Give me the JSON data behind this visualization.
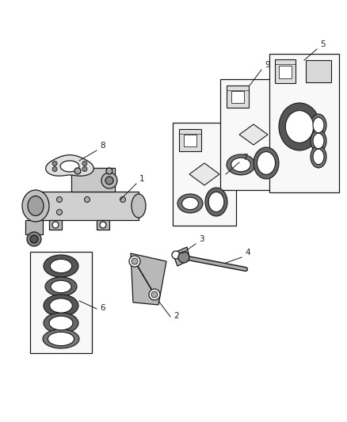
{
  "background_color": "#ffffff",
  "figsize": [
    4.38,
    5.33
  ],
  "dpi": 100,
  "line_color": "#1a1a1a",
  "label_color": "#222222",
  "gear_color": "#cccccc",
  "gear_dark": "#999999",
  "box_fill": "#f8f8f8",
  "seal_fill": "#dddddd",
  "ring_fill": "#888888",
  "ring_stroke": "#1a1a1a"
}
